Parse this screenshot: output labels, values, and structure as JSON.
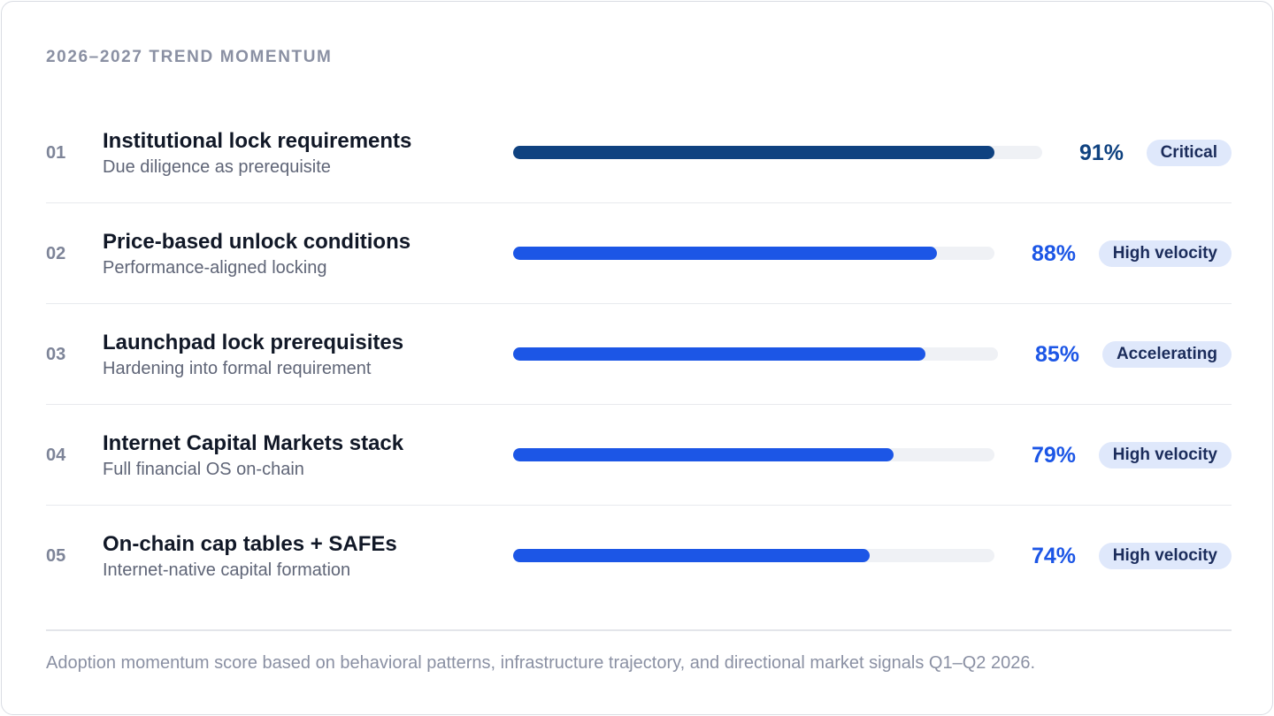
{
  "title": "2026–2027 TREND MOMENTUM",
  "colors": {
    "primary_dark": "#0f4280",
    "primary": "#1c56e6",
    "track": "#eff1f5",
    "badge_bg": "#dfe8fb"
  },
  "chart_data": {
    "type": "bar",
    "orientation": "horizontal",
    "title": "2026–2027 TREND MOMENTUM",
    "xlim": [
      0,
      100
    ],
    "unit": "%",
    "categories": [
      "Institutional lock requirements",
      "Price-based unlock conditions",
      "Launchpad lock prerequisites",
      "Internet Capital Markets stack",
      "On-chain cap tables + SAFEs"
    ],
    "values": [
      91,
      88,
      85,
      79,
      74
    ]
  },
  "trends": [
    {
      "num": "01",
      "name": "Institutional lock requirements",
      "sub": "Due diligence as prerequisite",
      "value": 91,
      "pct": "91%",
      "badge": "Critical",
      "color": "#0f4280"
    },
    {
      "num": "02",
      "name": "Price-based unlock conditions",
      "sub": "Performance-aligned locking",
      "value": 88,
      "pct": "88%",
      "badge": "High velocity",
      "color": "#1c56e6"
    },
    {
      "num": "03",
      "name": "Launchpad lock prerequisites",
      "sub": "Hardening into formal requirement",
      "value": 85,
      "pct": "85%",
      "badge": "Accelerating",
      "color": "#1c56e6"
    },
    {
      "num": "04",
      "name": "Internet Capital Markets stack",
      "sub": "Full financial OS on-chain",
      "value": 79,
      "pct": "79%",
      "badge": "High velocity",
      "color": "#1c56e6"
    },
    {
      "num": "05",
      "name": "On-chain cap tables + SAFEs",
      "sub": "Internet-native capital formation",
      "value": 74,
      "pct": "74%",
      "badge": "High velocity",
      "color": "#1c56e6"
    }
  ],
  "footnote": "Adoption momentum score based on behavioral patterns, infrastructure trajectory, and directional market signals Q1–Q2 2026."
}
